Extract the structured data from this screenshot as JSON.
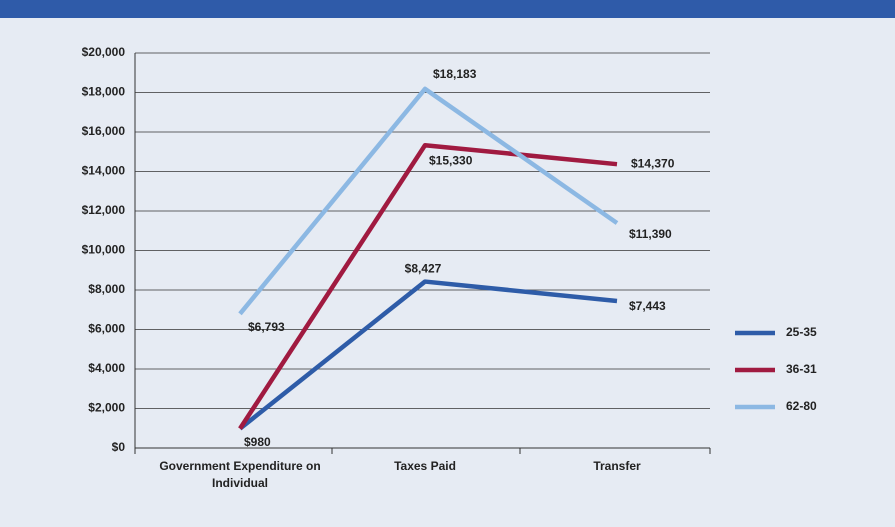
{
  "chart_data": {
    "type": "line",
    "categories": [
      "Government Expenditure on Individual",
      "Taxes Paid",
      "Transfer"
    ],
    "series": [
      {
        "name": "25-35",
        "color": "#2e5ca8",
        "values": [
          980,
          8427,
          7443
        ],
        "value_labels": [
          "$980",
          "$8,427",
          "$7,443"
        ]
      },
      {
        "name": "36-31",
        "color": "#a01a40",
        "values": [
          980,
          15330,
          14370
        ],
        "value_labels": [
          null,
          "$15,330",
          "$14,370"
        ]
      },
      {
        "name": "62-80",
        "color": "#8cb8e3",
        "values": [
          6793,
          18183,
          11390
        ],
        "value_labels": [
          "$6,793",
          "$18,183",
          "$11,390"
        ]
      }
    ],
    "ylim": [
      0,
      20000
    ],
    "yticks": [
      {
        "value": 0,
        "label": "$0"
      },
      {
        "value": 2000,
        "label": "$2,000"
      },
      {
        "value": 4000,
        "label": "$4,000"
      },
      {
        "value": 6000,
        "label": "$6,000"
      },
      {
        "value": 8000,
        "label": "$8,000"
      },
      {
        "value": 10000,
        "label": "$10,000"
      },
      {
        "value": 12000,
        "label": "$12,000"
      },
      {
        "value": 14000,
        "label": "$14,000"
      },
      {
        "value": 16000,
        "label": "$16,000"
      },
      {
        "value": 18000,
        "label": "$18,000"
      },
      {
        "value": 20000,
        "label": "$20,000"
      }
    ],
    "grid": true,
    "legend": "right"
  }
}
